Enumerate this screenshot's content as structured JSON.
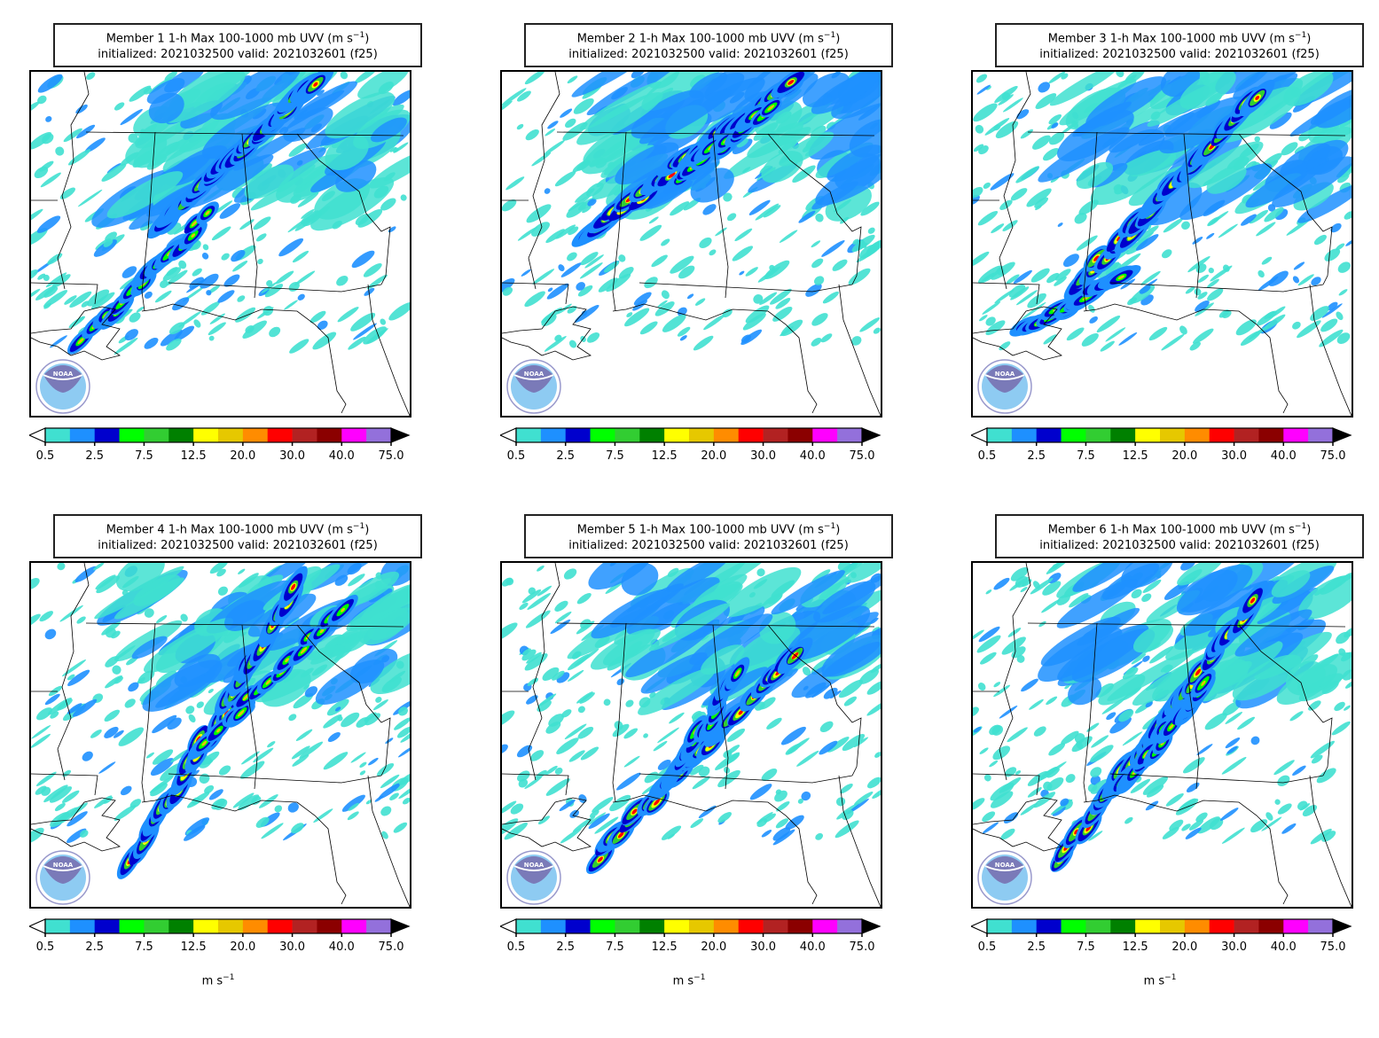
{
  "panels": [
    {
      "title_line1_pre": "Member 1 1-h Max 100-1000 mb UVV (m s",
      "exp": "−1",
      "title_line1_post": ")",
      "title_line2": "initialized: 2021032500 valid: 2021032601 (f25)"
    },
    {
      "title_line1_pre": "Member 2 1-h Max 100-1000 mb UVV (m s",
      "exp": "−1",
      "title_line1_post": ")",
      "title_line2": "initialized: 2021032500 valid: 2021032601 (f25)"
    },
    {
      "title_line1_pre": "Member 3 1-h Max 100-1000 mb UVV (m s",
      "exp": "−1",
      "title_line1_post": ")",
      "title_line2": "initialized: 2021032500 valid: 2021032601 (f25)"
    },
    {
      "title_line1_pre": "Member 4 1-h Max 100-1000 mb UVV (m s",
      "exp": "−1",
      "title_line1_post": ")",
      "title_line2": "initialized: 2021032500 valid: 2021032601 (f25)"
    },
    {
      "title_line1_pre": "Member 5 1-h Max 100-1000 mb UVV (m s",
      "exp": "−1",
      "title_line1_post": ")",
      "title_line2": "initialized: 2021032500 valid: 2021032601 (f25)"
    },
    {
      "title_line1_pre": "Member 6 1-h Max 100-1000 mb UVV (m s",
      "exp": "−1",
      "title_line1_post": ")",
      "title_line2": "initialized: 2021032500 valid: 2021032601 (f25)"
    }
  ],
  "colorbar": {
    "colors": [
      "#40e0d0",
      "#1e90ff",
      "#0000cd",
      "#00ff00",
      "#32cd32",
      "#008000",
      "#ffff00",
      "#e6c800",
      "#ff8c00",
      "#ff0000",
      "#b22222",
      "#8b0000",
      "#ff00ff",
      "#9370db"
    ],
    "under_color": "#ffffff",
    "over_color": "#000000",
    "tick_labels": [
      "0.5",
      "2.5",
      "7.5",
      "12.5",
      "20.0",
      "30.0",
      "40.0",
      "75.0"
    ],
    "units_pre": "m s",
    "units_exp": "−1"
  },
  "logo_text": "NOAA"
}
